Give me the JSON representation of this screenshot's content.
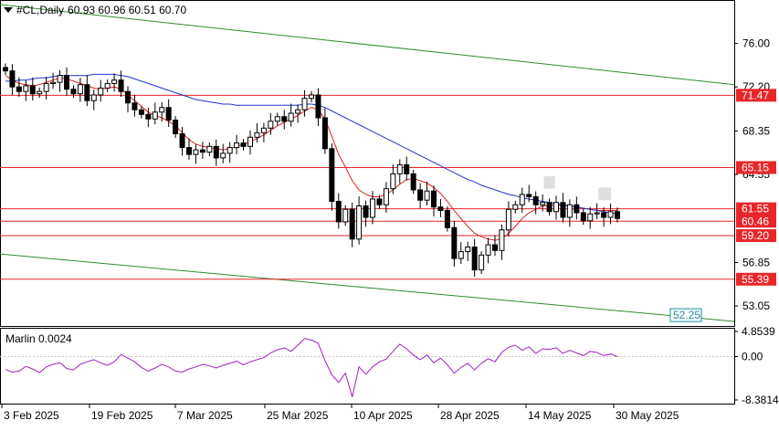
{
  "header": {
    "symbol": "#CL,Daily",
    "ohlc": "60.93 60.96 60.51 60.70"
  },
  "indicator": {
    "label": "Marlin 0.0024"
  },
  "chart_data": [
    {
      "type": "candlestick",
      "title": "#CL,Daily",
      "price_axis_ticks": [
        "76.00",
        "72.20",
        "68.35",
        "64.55",
        "56.85",
        "53.05"
      ],
      "ylim": [
        51.3,
        79.8
      ],
      "date_labels": [
        "3 Feb 2025",
        "19 Feb 2025",
        "7 Mar 2025",
        "25 Mar 2025",
        "10 Apr 2025",
        "28 Apr 2025",
        "14 May 2025",
        "30 May 2025"
      ],
      "horizontal_levels": [
        {
          "value": 71.47,
          "label": "71.47",
          "color": "#e8262a"
        },
        {
          "value": 65.15,
          "label": "65.15",
          "color": "#e8262a"
        },
        {
          "value": 61.55,
          "label": "61.55",
          "color": "#e8262a"
        },
        {
          "value": 60.46,
          "label": "60.46",
          "color": "#e8262a"
        },
        {
          "value": 59.2,
          "label": "59.20",
          "color": "#e8262a"
        },
        {
          "value": 55.39,
          "label": "55.39",
          "color": "#e8262a"
        }
      ],
      "trendline_label": {
        "value": 52.25,
        "label": "52.25",
        "color": "#1a8fa0"
      },
      "closes": [
        73.6,
        72.2,
        71.8,
        72.3,
        71.6,
        71.8,
        72.5,
        72.6,
        73.2,
        72.0,
        71.6,
        72.4,
        71.0,
        71.5,
        72.1,
        72.5,
        72.8,
        71.8,
        70.8,
        70.2,
        69.8,
        69.4,
        70.0,
        70.4,
        69.3,
        68.1,
        66.9,
        66.3,
        66.7,
        66.5,
        67.0,
        66.0,
        66.4,
        66.9,
        67.3,
        67.0,
        67.8,
        68.2,
        68.6,
        69.2,
        69.6,
        69.2,
        69.9,
        70.2,
        71.2,
        71.5,
        69.5,
        66.8,
        62.2,
        60.4,
        61.5,
        58.9,
        61.8,
        60.8,
        62.4,
        61.9,
        63.3,
        64.6,
        65.4,
        64.6,
        63.2,
        62.3,
        63.1,
        61.7,
        61.4,
        59.9,
        57.2,
        57.8,
        58.2,
        56.2,
        57.5,
        58.4,
        57.9,
        59.7,
        61.5,
        61.9,
        62.8,
        62.6,
        61.9,
        62.1,
        61.3,
        62.1,
        60.8,
        61.9,
        61.2,
        60.5,
        61.1,
        61.2,
        60.8,
        61.3,
        60.7
      ],
      "series": [
        {
          "name": "",
          "color": "#e02020",
          "values": [
            73.2,
            72.8,
            72.5,
            72.4,
            72.3,
            72.4,
            72.6,
            72.8,
            73.0,
            72.9,
            72.7,
            72.5,
            72.3,
            72.1,
            72.0,
            72.1,
            72.2,
            72.0,
            71.5,
            71.0,
            70.5,
            70.0,
            69.7,
            69.5,
            69.2,
            68.8,
            68.2,
            67.6,
            67.2,
            67.0,
            66.9,
            66.8,
            66.7,
            66.8,
            67.0,
            67.2,
            67.4,
            67.7,
            68.0,
            68.4,
            68.8,
            69.1,
            69.4,
            69.7,
            70.1,
            70.4,
            70.2,
            69.4,
            67.9,
            66.3,
            65.2,
            64.0,
            63.2,
            62.8,
            62.6,
            62.6,
            62.8,
            63.2,
            63.7,
            64.1,
            64.2,
            64.0,
            63.8,
            63.4,
            62.9,
            62.2,
            61.4,
            60.7,
            60.0,
            59.4,
            59.1,
            58.9,
            58.8,
            58.9,
            59.4,
            60.0,
            60.7,
            61.2,
            61.5,
            61.8,
            61.8,
            61.9,
            61.8,
            61.8,
            61.7,
            61.6,
            61.5,
            61.4,
            61.4,
            61.4,
            61.4
          ]
        },
        {
          "name": "",
          "color": "#2233cc",
          "values": [
            72.7,
            72.7,
            72.8,
            72.8,
            72.9,
            73.0,
            73.0,
            73.1,
            73.2,
            73.2,
            73.2,
            73.2,
            73.2,
            73.3,
            73.3,
            73.3,
            73.3,
            73.2,
            73.1,
            72.9,
            72.7,
            72.5,
            72.3,
            72.1,
            71.9,
            71.7,
            71.5,
            71.3,
            71.1,
            71.0,
            70.9,
            70.8,
            70.7,
            70.7,
            70.6,
            70.6,
            70.6,
            70.6,
            70.6,
            70.6,
            70.6,
            70.6,
            70.6,
            70.6,
            70.7,
            70.7,
            70.6,
            70.4,
            70.1,
            69.8,
            69.5,
            69.2,
            68.9,
            68.6,
            68.3,
            68.0,
            67.7,
            67.4,
            67.1,
            66.8,
            66.5,
            66.2,
            65.9,
            65.6,
            65.3,
            65.0,
            64.7,
            64.4,
            64.1,
            63.9,
            63.6,
            63.4,
            63.2,
            63.0,
            62.8,
            62.7,
            62.5,
            62.4,
            62.3,
            62.2,
            62.1,
            62.0,
            61.9,
            61.8,
            61.7,
            61.6,
            61.5,
            61.4,
            61.3,
            61.2,
            61.1
          ]
        }
      ],
      "channel_lines": "green",
      "grid": false
    },
    {
      "type": "line",
      "title": "Marlin 0.0024",
      "y_ticks": [
        "4.8539",
        "0.00",
        "-8.3814"
      ],
      "ylim": [
        -8.3814,
        4.8539
      ],
      "series": [
        {
          "name": "",
          "color": "#a020c0",
          "values": [
            -2.5,
            -3.0,
            -2.8,
            -1.9,
            -2.4,
            -3.1,
            -2.0,
            -1.5,
            -1.2,
            -2.3,
            -2.6,
            -1.5,
            -1.0,
            -0.6,
            -1.2,
            -1.7,
            -1.0,
            0.4,
            -0.3,
            -1.0,
            -2.1,
            -2.8,
            -2.2,
            -1.5,
            -2.0,
            -2.8,
            -3.0,
            -2.4,
            -2.0,
            -1.5,
            -1.8,
            -2.2,
            -1.7,
            -1.3,
            -0.9,
            -1.6,
            -1.0,
            -0.6,
            -0.2,
            0.7,
            1.3,
            1.7,
            1.0,
            2.2,
            3.5,
            3.2,
            2.6,
            -0.8,
            -3.5,
            -5.0,
            -3.2,
            -7.8,
            -2.0,
            -3.4,
            -2.0,
            -1.0,
            -0.5,
            1.0,
            2.4,
            1.5,
            0.3,
            -0.6,
            0.3,
            -1.2,
            -0.3,
            -1.6,
            -3.2,
            -2.1,
            -1.3,
            -2.6,
            -1.3,
            -0.4,
            -1.0,
            0.8,
            1.8,
            2.2,
            1.2,
            1.9,
            0.6,
            1.5,
            1.4,
            1.7,
            0.6,
            1.2,
            0.7,
            0.2,
            1.0,
            0.8,
            0.2,
            0.5,
            0.0
          ]
        }
      ]
    }
  ]
}
